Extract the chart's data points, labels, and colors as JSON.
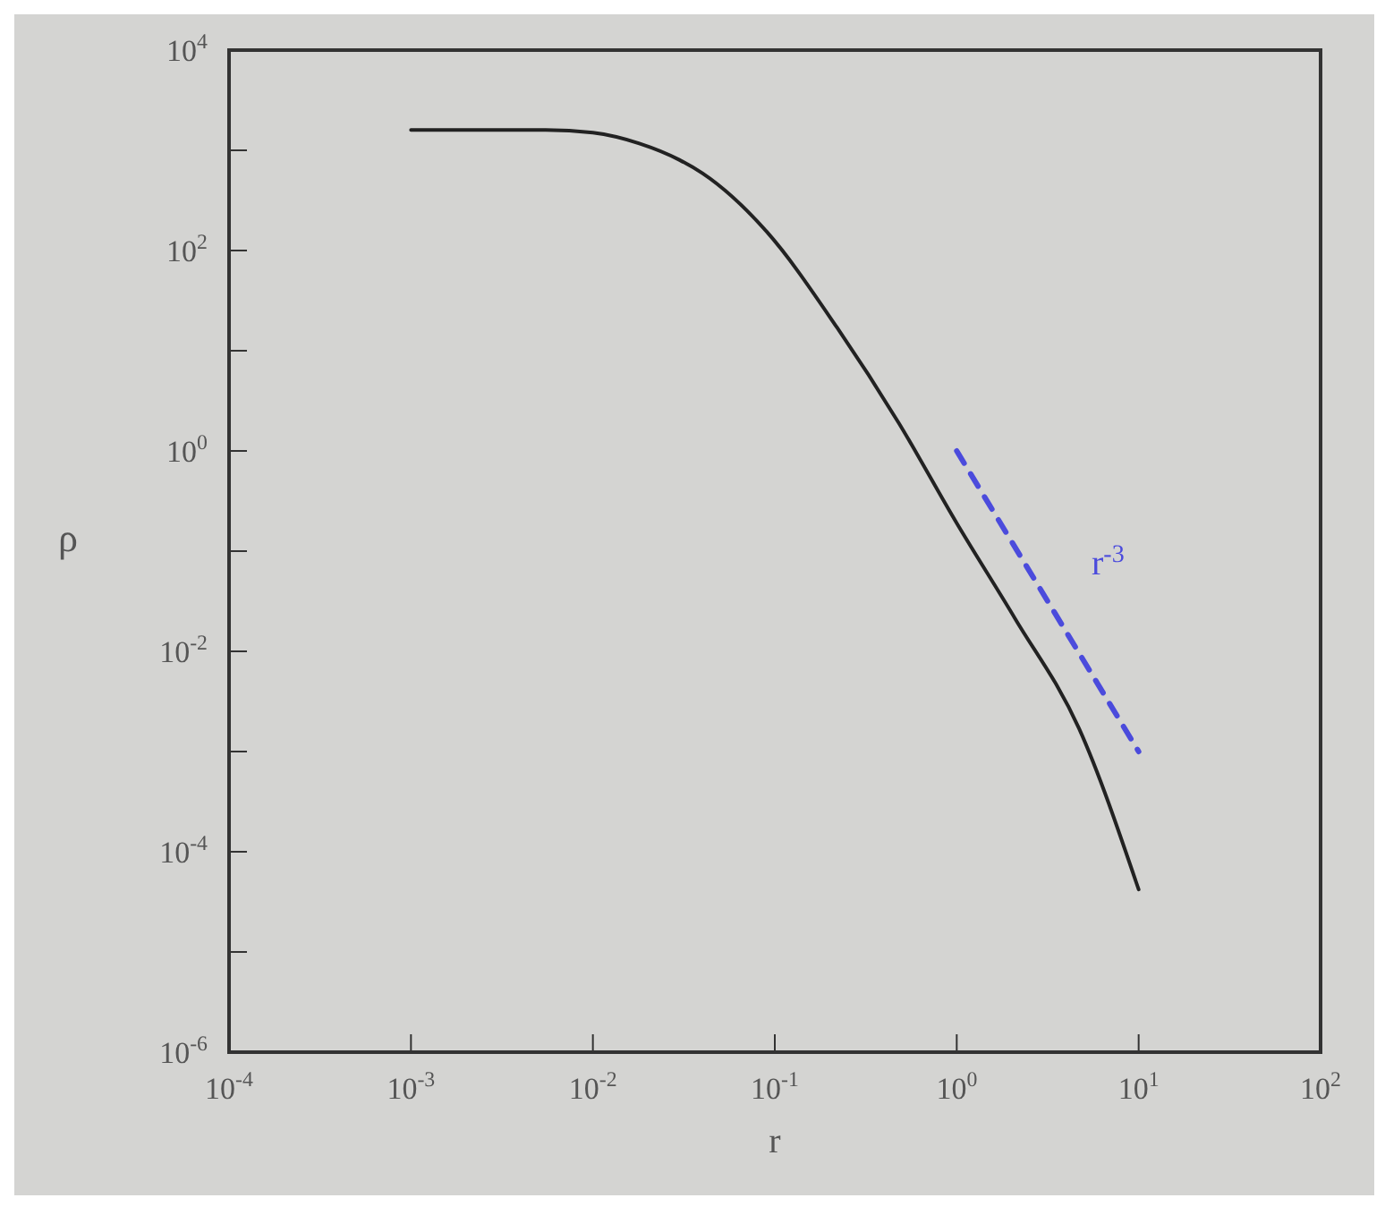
{
  "chart_data": {
    "type": "line",
    "xlabel": "r",
    "ylabel": "ρ",
    "log": "xy",
    "xlim": [
      0.0001,
      100
    ],
    "ylim": [
      1e-06,
      10000
    ],
    "xticks": [
      {
        "value": 0.0001,
        "label": "10$^{-4}$"
      },
      {
        "value": 0.001,
        "label": "10$^{-3}$"
      },
      {
        "value": 0.01,
        "label": "10$^{-2}$"
      },
      {
        "value": 0.1,
        "label": "10$^{-1}$"
      },
      {
        "value": 1,
        "label": "10$^{0}$"
      },
      {
        "value": 10,
        "label": "10$^{1}$"
      },
      {
        "value": 100,
        "label": "10$^{2}$"
      }
    ],
    "yticks": [
      {
        "value": 1e-06,
        "label": "10$^{-6}$"
      },
      {
        "value": 1e-05,
        "label": null
      },
      {
        "value": 0.0001,
        "label": "10$^{-4}$"
      },
      {
        "value": 0.001,
        "label": null
      },
      {
        "value": 0.01,
        "label": "10$^{-2}$"
      },
      {
        "value": 0.1,
        "label": null
      },
      {
        "value": 1,
        "label": "10$^{0}$"
      },
      {
        "value": 10,
        "label": null
      },
      {
        "value": 100,
        "label": "10$^{2}$"
      },
      {
        "value": 1000,
        "label": null
      },
      {
        "value": 10000,
        "label": "10$^{4}$"
      }
    ],
    "marker": "none",
    "series": [
      {
        "color": "#222222",
        "line_style": "solid",
        "x": [
          0.001,
          0.002,
          0.0055,
          0.01,
          0.018,
          0.03,
          0.04,
          0.09,
          0.22,
          0.48,
          1.0,
          2.1,
          4.7,
          10
        ],
        "values": [
          1600,
          1600,
          1600,
          1500,
          1170,
          800,
          590,
          155,
          17,
          1.9,
          0.19,
          0.021,
          0.0017,
          4.2e-05
        ]
      },
      {
        "color": "#4b4bdc",
        "line_style": "dashed",
        "x": [
          1,
          10
        ],
        "values": [
          1,
          0.001
        ]
      }
    ],
    "annotations": [
      "r$^{-3}$"
    ]
  }
}
